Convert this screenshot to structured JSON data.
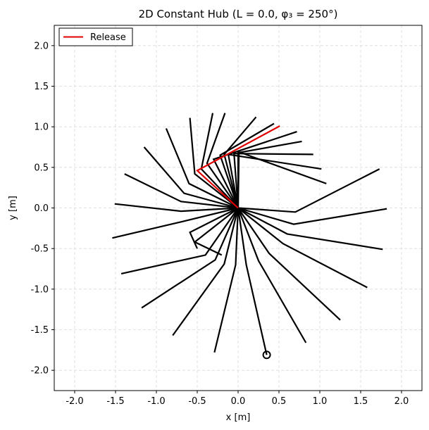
{
  "chart_data": {
    "type": "line",
    "title": "2D Constant Hub (L = 0.0, φ₃ = 250°)",
    "xlabel": "x [m]",
    "ylabel": "y [m]",
    "xlim": [
      -2.25,
      2.25
    ],
    "ylim": [
      -2.25,
      2.25
    ],
    "xticks": [
      -2.0,
      -1.5,
      -1.0,
      -0.5,
      0.0,
      0.5,
      1.0,
      1.5,
      2.0
    ],
    "yticks": [
      -2.0,
      -1.5,
      -1.0,
      -0.5,
      0.0,
      0.5,
      1.0,
      1.5,
      2.0
    ],
    "grid": true,
    "legend": {
      "placement": "top-left",
      "entries": [
        {
          "name": "Release",
          "color": "#e00000"
        }
      ]
    },
    "hub": [
      0.0,
      0.0
    ],
    "series": [
      {
        "values": [
          [
            0,
            0
          ],
          [
            0,
            0.68
          ],
          [
            0.78,
            0.82
          ]
        ],
        "color": "#000000"
      },
      {
        "values": [
          [
            0,
            0
          ],
          [
            -0.05,
            0.67
          ],
          [
            0.92,
            0.66
          ]
        ],
        "color": "#000000"
      },
      {
        "values": [
          [
            0,
            0
          ],
          [
            -0.12,
            0.66
          ],
          [
            1.02,
            0.48
          ]
        ],
        "color": "#000000"
      },
      {
        "values": [
          [
            0,
            0
          ],
          [
            0.01,
            0.69
          ],
          [
            1.08,
            0.3
          ]
        ],
        "color": "#000000"
      },
      {
        "values": [
          [
            0,
            0
          ],
          [
            -0.17,
            0.66
          ],
          [
            0.22,
            1.12
          ]
        ],
        "color": "#000000"
      },
      {
        "values": [
          [
            0,
            0
          ],
          [
            -0.22,
            0.65
          ],
          [
            0.44,
            1.04
          ]
        ],
        "color": "#000000"
      },
      {
        "values": [
          [
            0,
            0
          ],
          [
            -0.3,
            0.6
          ],
          [
            0.72,
            0.94
          ]
        ],
        "color": "#000000"
      },
      {
        "values": [
          [
            0,
            0
          ],
          [
            -0.38,
            0.55
          ],
          [
            -0.16,
            1.17
          ]
        ],
        "color": "#000000"
      },
      {
        "values": [
          [
            0,
            0
          ],
          [
            -0.45,
            0.48
          ],
          [
            -0.31,
            1.17
          ]
        ],
        "color": "#000000"
      },
      {
        "values": [
          [
            0,
            0
          ],
          [
            -0.53,
            0.42
          ],
          [
            -0.59,
            1.11
          ]
        ],
        "color": "#000000"
      },
      {
        "values": [
          [
            0,
            0
          ],
          [
            -0.6,
            0.3
          ],
          [
            -0.88,
            0.98
          ]
        ],
        "color": "#000000"
      },
      {
        "values": [
          [
            0,
            0
          ],
          [
            -0.66,
            0.18
          ],
          [
            -1.15,
            0.75
          ]
        ],
        "color": "#000000"
      },
      {
        "values": [
          [
            0,
            0
          ],
          [
            -0.7,
            0.08
          ],
          [
            -1.39,
            0.42
          ]
        ],
        "color": "#000000"
      },
      {
        "values": [
          [
            0,
            0
          ],
          [
            -0.7,
            -0.04
          ],
          [
            -1.51,
            0.05
          ]
        ],
        "color": "#000000"
      },
      {
        "values": [
          [
            0,
            0
          ],
          [
            -0.69,
            -0.17
          ],
          [
            -1.54,
            -0.37
          ]
        ],
        "color": "#000000"
      },
      {
        "values": [
          [
            0,
            0
          ],
          [
            -0.59,
            -0.3
          ],
          [
            -0.5,
            -0.5
          ]
        ],
        "color": "#000000"
      },
      {
        "values": [
          [
            0,
            0
          ],
          [
            -0.53,
            -0.42
          ],
          [
            -0.2,
            -0.58
          ]
        ],
        "color": "#000000"
      },
      {
        "values": [
          [
            0,
            0
          ],
          [
            -0.4,
            -0.58
          ],
          [
            -1.43,
            -0.81
          ]
        ],
        "color": "#000000"
      },
      {
        "values": [
          [
            0,
            0
          ],
          [
            -0.28,
            -0.64
          ],
          [
            -1.18,
            -1.23
          ]
        ],
        "color": "#000000"
      },
      {
        "values": [
          [
            0,
            0
          ],
          [
            -0.17,
            -0.69
          ],
          [
            -0.8,
            -1.57
          ]
        ],
        "color": "#000000"
      },
      {
        "values": [
          [
            0,
            0
          ],
          [
            -0.03,
            -0.7
          ],
          [
            -0.29,
            -1.78
          ]
        ],
        "color": "#000000"
      },
      {
        "values": [
          [
            0,
            0
          ],
          [
            0.1,
            -0.7
          ],
          [
            0.35,
            -1.81
          ]
        ],
        "color": "#000000"
      },
      {
        "values": [
          [
            0,
            0
          ],
          [
            0.25,
            -0.65
          ],
          [
            0.83,
            -1.66
          ]
        ],
        "color": "#000000"
      },
      {
        "values": [
          [
            0,
            0
          ],
          [
            0.38,
            -0.56
          ],
          [
            1.25,
            -1.38
          ]
        ],
        "color": "#000000"
      },
      {
        "values": [
          [
            0,
            0
          ],
          [
            0.55,
            -0.44
          ],
          [
            1.58,
            -0.98
          ]
        ],
        "color": "#000000"
      },
      {
        "values": [
          [
            0,
            0
          ],
          [
            0.6,
            -0.32
          ],
          [
            1.77,
            -0.51
          ]
        ],
        "color": "#000000"
      },
      {
        "values": [
          [
            0,
            0
          ],
          [
            0.68,
            -0.2
          ],
          [
            1.82,
            -0.01
          ]
        ],
        "color": "#000000"
      },
      {
        "values": [
          [
            0,
            0
          ],
          [
            0.7,
            -0.05
          ],
          [
            1.73,
            0.48
          ]
        ],
        "color": "#000000"
      },
      {
        "name": "Release",
        "values": [
          [
            0,
            0
          ],
          [
            -0.5,
            0.46
          ],
          [
            0.51,
            1.01
          ]
        ],
        "color": "#e00000"
      }
    ],
    "marker": {
      "shape": "circle",
      "x": 0.35,
      "y": -1.81
    }
  }
}
